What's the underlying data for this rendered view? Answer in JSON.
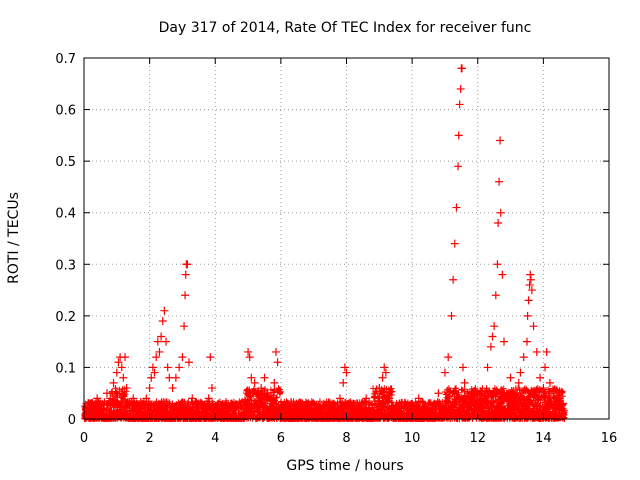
{
  "chart_data": {
    "type": "scatter",
    "title": "Day 317 of 2014, Rate Of TEC Index for receiver func",
    "xlabel": "GPS time / hours",
    "ylabel": "ROTI / TECUs",
    "xlim": [
      0,
      16
    ],
    "ylim": [
      0,
      0.7
    ],
    "xticks": [
      0,
      2,
      4,
      6,
      8,
      10,
      12,
      14,
      16
    ],
    "yticks": [
      0,
      0.1,
      0.2,
      0.3,
      0.4,
      0.5,
      0.6,
      0.7
    ],
    "grid": true,
    "marker": "+",
    "color": "#ff0000",
    "series": [
      {
        "name": "ROTI",
        "x": [
          0.05,
          0.1,
          0.2,
          0.3,
          0.4,
          0.5,
          0.6,
          0.7,
          0.8,
          0.9,
          1.0,
          1.05,
          1.1,
          1.15,
          1.2,
          1.25,
          1.3,
          1.4,
          1.5,
          1.6,
          1.7,
          1.8,
          1.9,
          2.0,
          2.05,
          2.1,
          2.15,
          2.2,
          2.25,
          2.3,
          2.35,
          2.4,
          2.45,
          2.5,
          2.55,
          2.6,
          2.7,
          2.8,
          2.9,
          3.0,
          3.05,
          3.08,
          3.1,
          3.12,
          3.15,
          3.2,
          3.3,
          3.5,
          3.7,
          3.8,
          3.85,
          3.9,
          4.0,
          4.2,
          4.5,
          4.8,
          5.0,
          5.05,
          5.1,
          5.2,
          5.3,
          5.4,
          5.5,
          5.6,
          5.7,
          5.8,
          5.85,
          5.9,
          6.0,
          6.3,
          6.6,
          7.0,
          7.4,
          7.8,
          7.9,
          7.95,
          8.0,
          8.1,
          8.3,
          8.6,
          8.9,
          9.0,
          9.1,
          9.15,
          9.2,
          9.3,
          9.5,
          9.8,
          10.0,
          10.2,
          10.5,
          10.8,
          11.0,
          11.1,
          11.2,
          11.25,
          11.3,
          11.35,
          11.4,
          11.42,
          11.45,
          11.48,
          11.5,
          11.52,
          11.55,
          11.6,
          11.7,
          11.8,
          12.0,
          12.2,
          12.3,
          12.4,
          12.45,
          12.5,
          12.55,
          12.6,
          12.62,
          12.65,
          12.68,
          12.7,
          12.75,
          12.8,
          13.0,
          13.2,
          13.25,
          13.3,
          13.4,
          13.5,
          13.52,
          13.55,
          13.58,
          13.6,
          13.62,
          13.65,
          13.7,
          13.8,
          13.9,
          14.0,
          14.05,
          14.1,
          14.2,
          14.3,
          14.4,
          14.5,
          14.6
        ],
        "y": [
          0.01,
          0.02,
          0.03,
          0.02,
          0.04,
          0.03,
          0.02,
          0.05,
          0.04,
          0.07,
          0.09,
          0.11,
          0.12,
          0.1,
          0.08,
          0.12,
          0.06,
          0.03,
          0.04,
          0.03,
          0.02,
          0.03,
          0.04,
          0.06,
          0.08,
          0.1,
          0.09,
          0.12,
          0.15,
          0.13,
          0.16,
          0.19,
          0.21,
          0.15,
          0.1,
          0.08,
          0.06,
          0.08,
          0.1,
          0.12,
          0.18,
          0.24,
          0.28,
          0.3,
          0.3,
          0.11,
          0.04,
          0.03,
          0.02,
          0.04,
          0.12,
          0.06,
          0.02,
          0.02,
          0.03,
          0.02,
          0.13,
          0.12,
          0.08,
          0.07,
          0.05,
          0.06,
          0.08,
          0.05,
          0.03,
          0.07,
          0.13,
          0.11,
          0.02,
          0.02,
          0.03,
          0.02,
          0.02,
          0.04,
          0.07,
          0.1,
          0.09,
          0.03,
          0.02,
          0.04,
          0.03,
          0.06,
          0.08,
          0.1,
          0.09,
          0.04,
          0.02,
          0.03,
          0.02,
          0.04,
          0.03,
          0.05,
          0.09,
          0.12,
          0.2,
          0.27,
          0.34,
          0.41,
          0.49,
          0.55,
          0.61,
          0.64,
          0.68,
          0.68,
          0.1,
          0.07,
          0.05,
          0.04,
          0.03,
          0.05,
          0.1,
          0.14,
          0.16,
          0.18,
          0.24,
          0.3,
          0.38,
          0.46,
          0.54,
          0.4,
          0.28,
          0.15,
          0.08,
          0.05,
          0.07,
          0.09,
          0.12,
          0.15,
          0.2,
          0.23,
          0.26,
          0.28,
          0.27,
          0.25,
          0.18,
          0.13,
          0.08,
          0.06,
          0.1,
          0.13,
          0.07,
          0.05,
          0.04,
          0.04,
          0.03
        ]
      }
    ]
  }
}
